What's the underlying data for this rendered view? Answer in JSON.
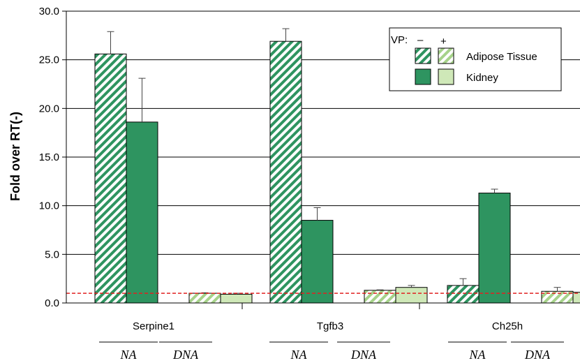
{
  "colors": {
    "dark_green": "#2e9460",
    "light_green": "#cfe8b8",
    "hatch_light": "#a6d28a",
    "grid": "#000000",
    "baseline": "#e02020"
  },
  "chart_data": {
    "type": "bar",
    "ylabel": "Fold over RT(-)",
    "ylim": [
      0,
      30
    ],
    "yticks": [
      "0.0",
      "5.0",
      "10.0",
      "15.0",
      "20.0",
      "25.0",
      "30.0"
    ],
    "ytick_values": [
      0,
      5,
      10,
      15,
      20,
      25,
      30
    ],
    "grid": true,
    "reference_line": 1.0,
    "categories": [
      "Serpine1",
      "Tgfb3",
      "Ch25h"
    ],
    "subgroups": [
      "NA",
      "DNA"
    ],
    "legend": {
      "header": "VP:",
      "minus": "–",
      "plus": "+",
      "entries": [
        "Adipose Tissue",
        "Kidney"
      ],
      "placement": "top-right"
    },
    "bars": [
      {
        "group": 0,
        "slot": 0,
        "tissue": "Adipose Tissue",
        "vp": "-",
        "value": 25.6,
        "error": 2.3
      },
      {
        "group": 0,
        "slot": 1,
        "tissue": "Kidney",
        "vp": "-",
        "value": 18.6,
        "error": 4.5
      },
      {
        "group": 0,
        "slot": 2,
        "tissue": "Adipose Tissue",
        "vp": "+",
        "value": 1.0,
        "error": 0.05
      },
      {
        "group": 0,
        "slot": 3,
        "tissue": "Kidney",
        "vp": "+",
        "value": 0.9,
        "error": 0.1
      },
      {
        "group": 1,
        "slot": 0,
        "tissue": "Adipose Tissue",
        "vp": "-",
        "value": 26.9,
        "error": 1.3
      },
      {
        "group": 1,
        "slot": 1,
        "tissue": "Kidney",
        "vp": "-",
        "value": 8.5,
        "error": 1.3
      },
      {
        "group": 1,
        "slot": 2,
        "tissue": "Adipose Tissue",
        "vp": "+",
        "value": 1.3,
        "error": 0.05
      },
      {
        "group": 1,
        "slot": 3,
        "tissue": "Kidney",
        "vp": "+",
        "value": 1.6,
        "error": 0.2
      },
      {
        "group": 2,
        "slot": 0,
        "tissue": "Adipose Tissue",
        "vp": "-",
        "value": 1.8,
        "error": 0.7
      },
      {
        "group": 2,
        "slot": 1,
        "tissue": "Kidney",
        "vp": "-",
        "value": 11.3,
        "error": 0.4
      },
      {
        "group": 2,
        "slot": 2,
        "tissue": "Adipose Tissue",
        "vp": "+",
        "value": 1.2,
        "error": 0.4
      },
      {
        "group": 2,
        "slot": 3,
        "tissue": "Kidney",
        "vp": "+",
        "value": 1.1,
        "error": 0.1
      }
    ]
  }
}
